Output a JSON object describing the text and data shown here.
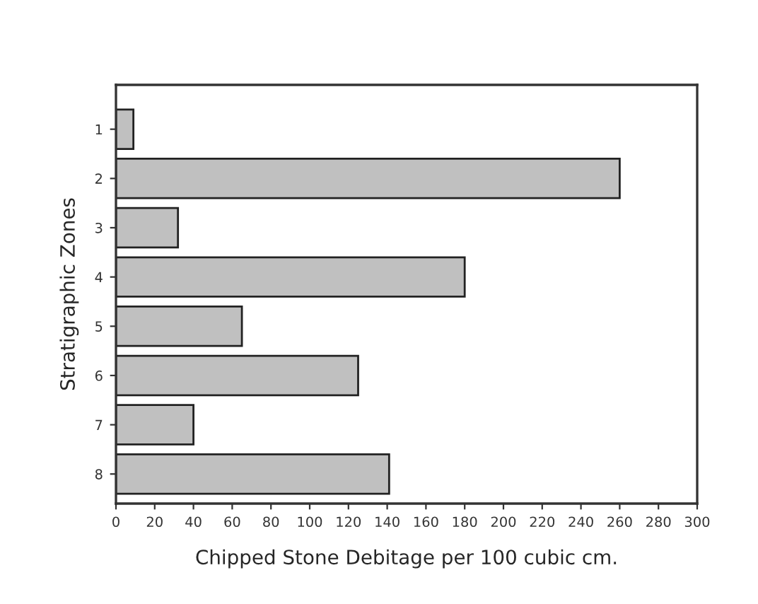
{
  "chart_data": {
    "type": "bar",
    "orientation": "horizontal",
    "xlabel": "Chipped Stone Debitage per 100 cubic cm.",
    "ylabel": "Stratigraphic Zones",
    "categories": [
      "1",
      "2",
      "3",
      "4",
      "5",
      "6",
      "7",
      "8"
    ],
    "values": [
      9,
      260,
      32,
      180,
      65,
      125,
      40,
      141
    ],
    "color": "#c0c0c0",
    "xlim": [
      0,
      300
    ],
    "xticks": [
      0,
      20,
      40,
      60,
      80,
      100,
      120,
      140,
      160,
      180,
      200,
      220,
      240,
      260,
      280,
      300
    ],
    "grid": false,
    "legend": false
  }
}
